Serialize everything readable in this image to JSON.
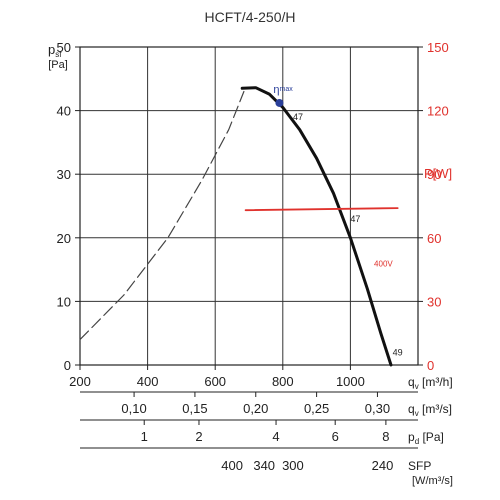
{
  "chart_data": {
    "type": "line",
    "title": "HCFT/4-250/H",
    "y_axis_left": {
      "label": "p",
      "label_sub": "sf",
      "unit": "[Pa]",
      "range": [
        0,
        50
      ],
      "ticks": [
        0,
        10,
        20,
        30,
        40,
        50
      ]
    },
    "y_axis_right": {
      "label": "P[W]",
      "range": [
        0,
        150
      ],
      "ticks": [
        0,
        30,
        60,
        90,
        120,
        150
      ],
      "tick_labels": [
        "0",
        "30",
        "60",
        "90",
        "120",
        "150"
      ],
      "color": "#e0322d"
    },
    "x_axis": {
      "label": "q",
      "label_sub": "v",
      "unit": "[m³/h]",
      "range": [
        200,
        1200
      ],
      "ticks": [
        200,
        400,
        600,
        800,
        1000
      ],
      "tick_labels": [
        "200",
        "400",
        "600",
        "800",
        "1000"
      ]
    },
    "secondary_scales": [
      {
        "label": "q",
        "label_sub": "v",
        "unit": "[m³/s]",
        "ticks": [
          {
            "x": 360,
            "label": "0,10"
          },
          {
            "x": 540,
            "label": "0,15"
          },
          {
            "x": 720,
            "label": "0,20"
          },
          {
            "x": 900,
            "label": "0,25"
          },
          {
            "x": 1080,
            "label": "0,30"
          }
        ]
      },
      {
        "label": "p",
        "label_sub": "d",
        "unit": "[Pa]",
        "ticks": [
          {
            "x": 390,
            "label": "1"
          },
          {
            "x": 552,
            "label": "2"
          },
          {
            "x": 780,
            "label": "4"
          },
          {
            "x": 955,
            "label": "6"
          },
          {
            "x": 1105,
            "label": "8"
          }
        ]
      },
      {
        "label": "SFP",
        "unit": "[W/m³/s]",
        "ticks": [
          {
            "x": 650,
            "label": "400"
          },
          {
            "x": 745,
            "label": "340"
          },
          {
            "x": 830,
            "label": "300"
          },
          {
            "x": 1095,
            "label": "240"
          }
        ]
      }
    ],
    "series": [
      {
        "style": "dashed",
        "color": "#444444",
        "points": [
          [
            200,
            4
          ],
          [
            330,
            11
          ],
          [
            460,
            20
          ],
          [
            560,
            29
          ],
          [
            640,
            37
          ],
          [
            685,
            43
          ]
        ]
      },
      {
        "style": "solid",
        "color": "#111111",
        "points": [
          [
            680,
            43.5
          ],
          [
            720,
            43.6
          ],
          [
            760,
            42.6
          ],
          [
            800,
            40.5
          ],
          [
            850,
            37
          ],
          [
            900,
            32.5
          ],
          [
            950,
            27
          ],
          [
            1000,
            20
          ],
          [
            1050,
            12
          ],
          [
            1090,
            5
          ],
          [
            1120,
            0
          ]
        ]
      },
      {
        "style": "solid",
        "color": "#e0322d",
        "axis": "right",
        "points": [
          [
            690,
            73
          ],
          [
            1140,
            74
          ]
        ]
      }
    ],
    "annotations": [
      {
        "text": "η",
        "sub": "max",
        "x": 790,
        "y": 41.5,
        "marker": true,
        "color": "#2a3f9a"
      },
      {
        "text": "47",
        "x": 830,
        "y": 38.5
      },
      {
        "text": "47",
        "x": 1000,
        "y": 22.5
      },
      {
        "text": "49",
        "x": 1125,
        "y": 1.5
      },
      {
        "text": "400V",
        "x": 1070,
        "y": 15.5,
        "color": "#e0322d"
      }
    ],
    "grid": true
  }
}
